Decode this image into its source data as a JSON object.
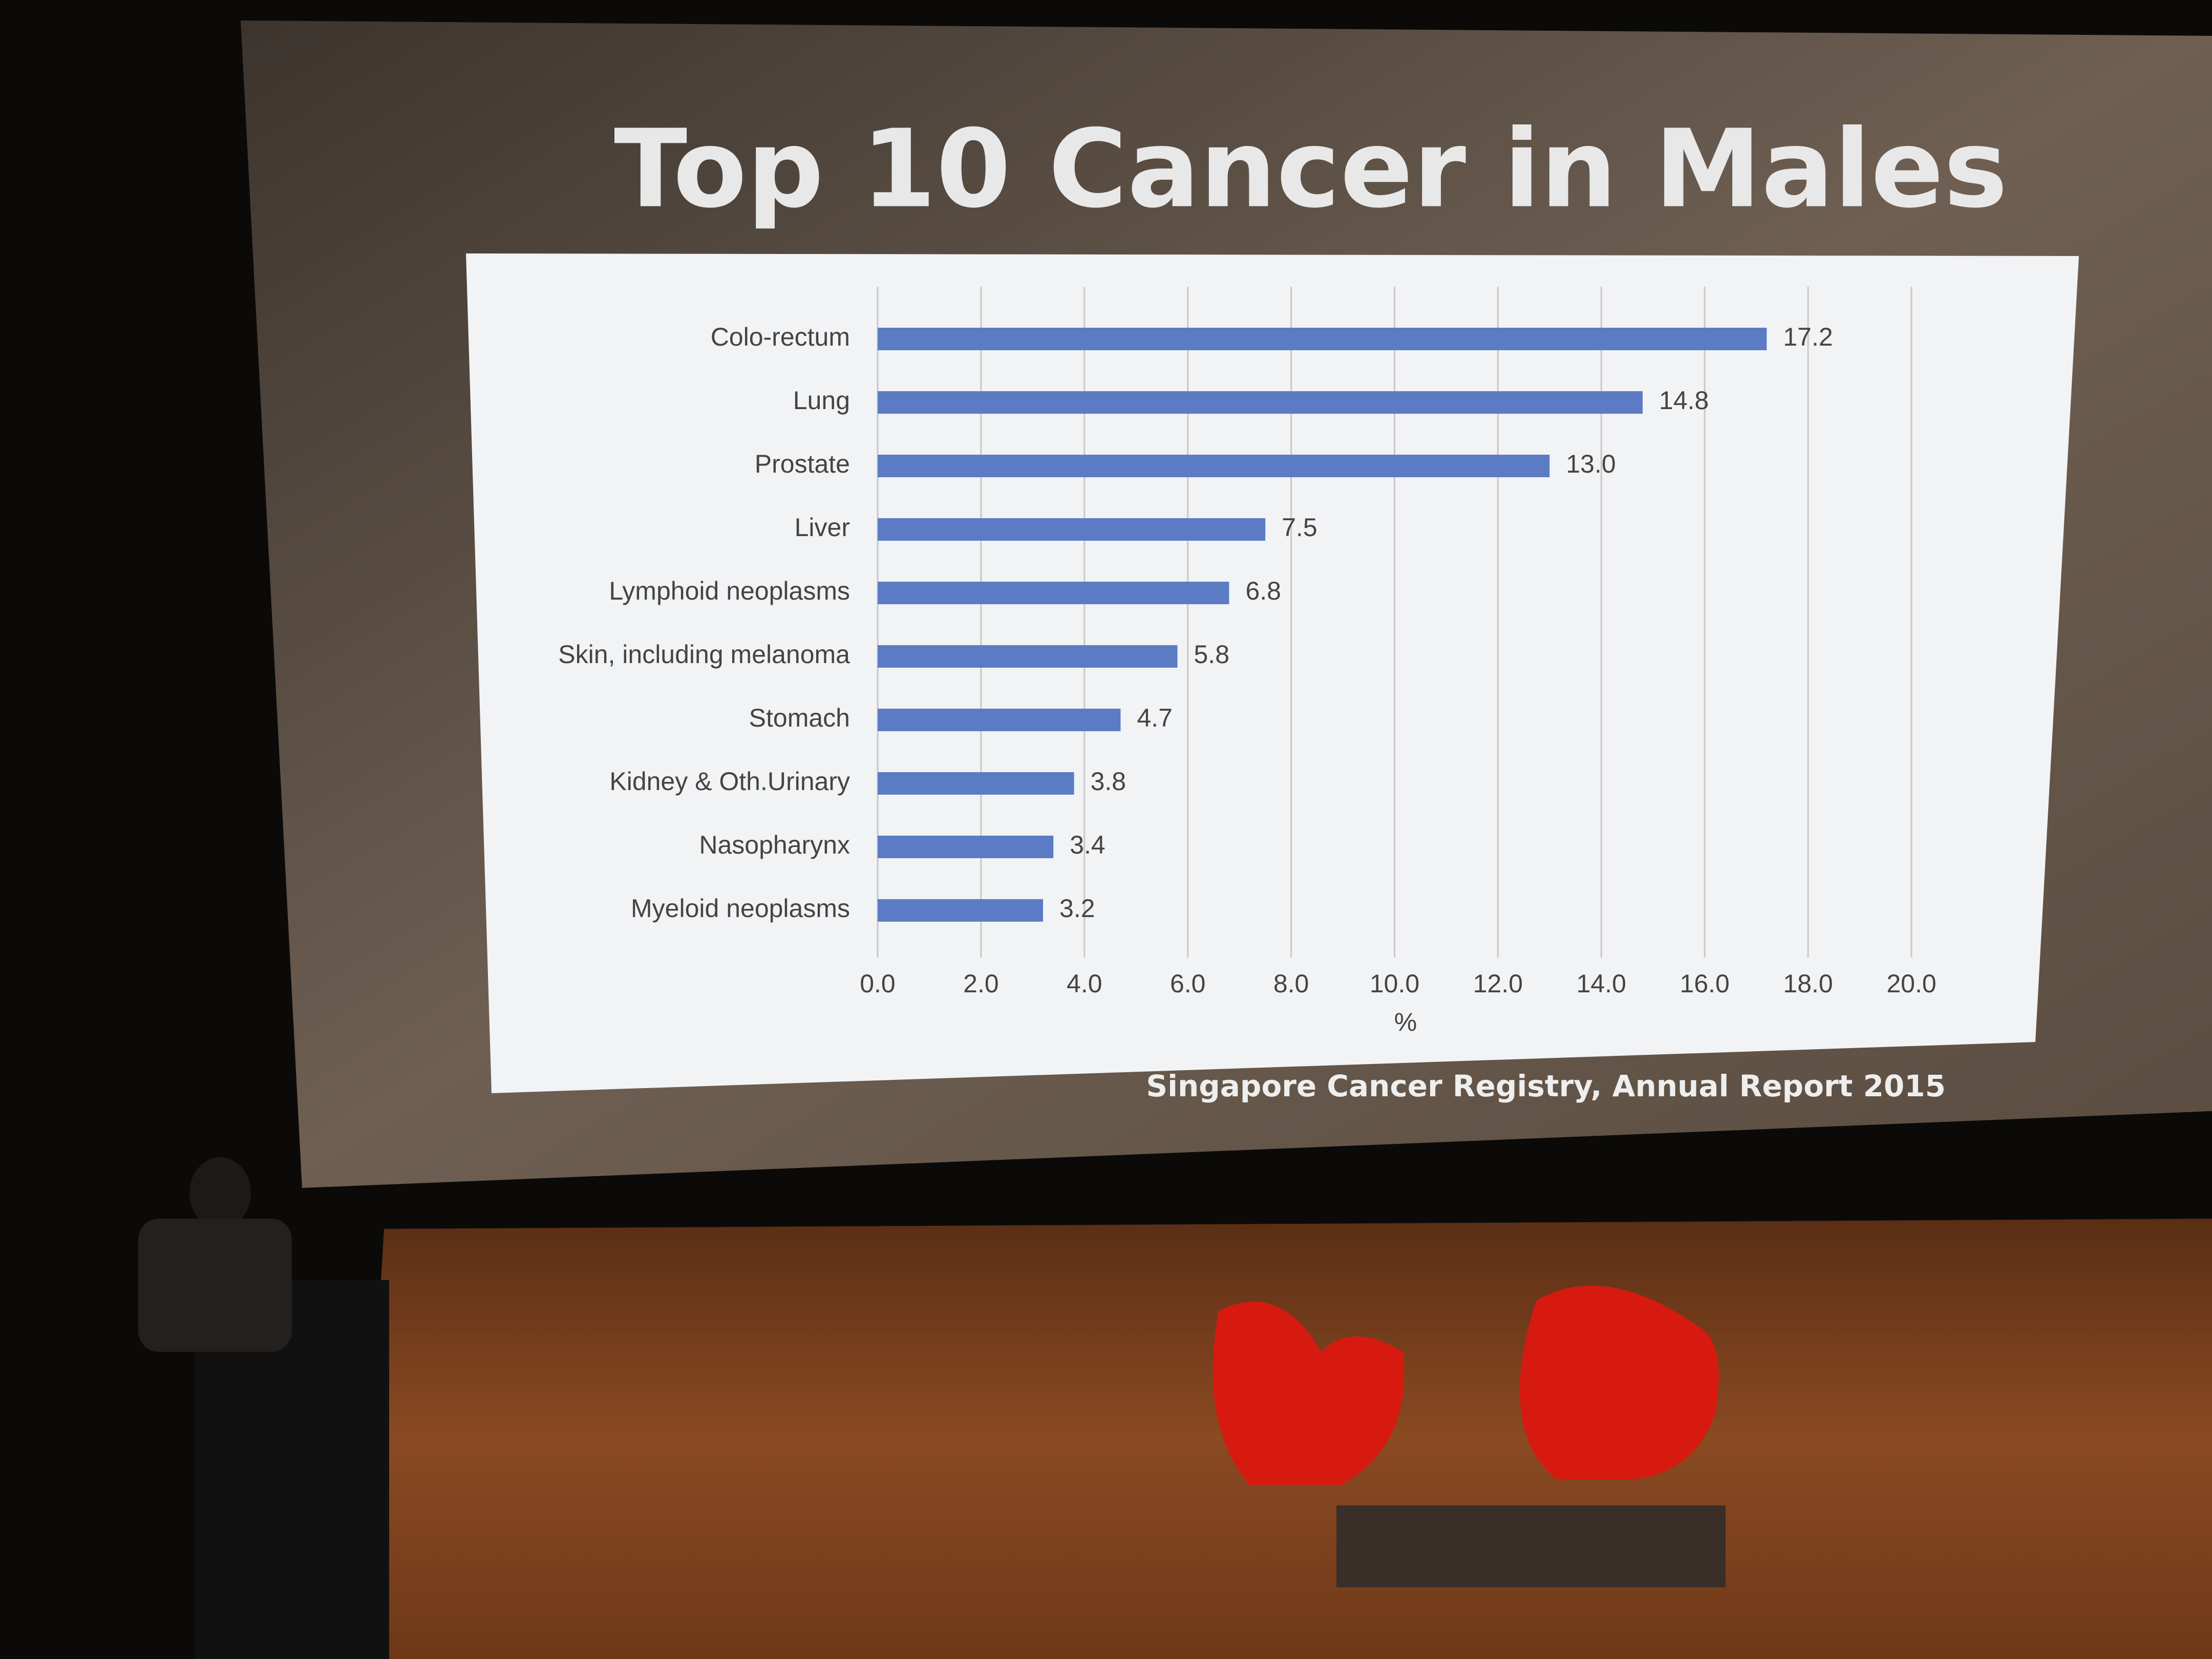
{
  "chart_data": {
    "type": "hbar",
    "title": "Top 10 Cancer in Males",
    "categories": [
      "Colo-rectum",
      "Lung",
      "Prostate",
      "Liver",
      "Lymphoid neoplasms",
      "Skin, including melanoma",
      "Stomach",
      "Kidney & Oth.Urinary",
      "Nasopharynx",
      "Myeloid neoplasms"
    ],
    "values": [
      17.2,
      14.8,
      13.0,
      7.5,
      6.8,
      5.8,
      4.7,
      3.8,
      3.4,
      3.2
    ],
    "value_labels": [
      "17.2",
      "14.8",
      "13.0",
      "7.5",
      "6.8",
      "5.8",
      "4.7",
      "3.8",
      "3.4",
      "3.2"
    ],
    "color": "#5b7cc4",
    "x_label": "%",
    "xlim": [
      0,
      20
    ],
    "xticks": [
      {
        "value": 0,
        "label": "0.0"
      },
      {
        "value": 2,
        "label": "2.0"
      },
      {
        "value": 4,
        "label": "4.0"
      },
      {
        "value": 6,
        "label": "6.0"
      },
      {
        "value": 8,
        "label": "8.0"
      },
      {
        "value": 10,
        "label": "10.0"
      },
      {
        "value": 12,
        "label": "12.0"
      },
      {
        "value": 14,
        "label": "14.0"
      },
      {
        "value": 16,
        "label": "16.0"
      },
      {
        "value": 18,
        "label": "18.0"
      },
      {
        "value": 20,
        "label": "20.0"
      }
    ],
    "grid": true,
    "source": "Singapore Cancer Registry, Annual Report 2015"
  }
}
